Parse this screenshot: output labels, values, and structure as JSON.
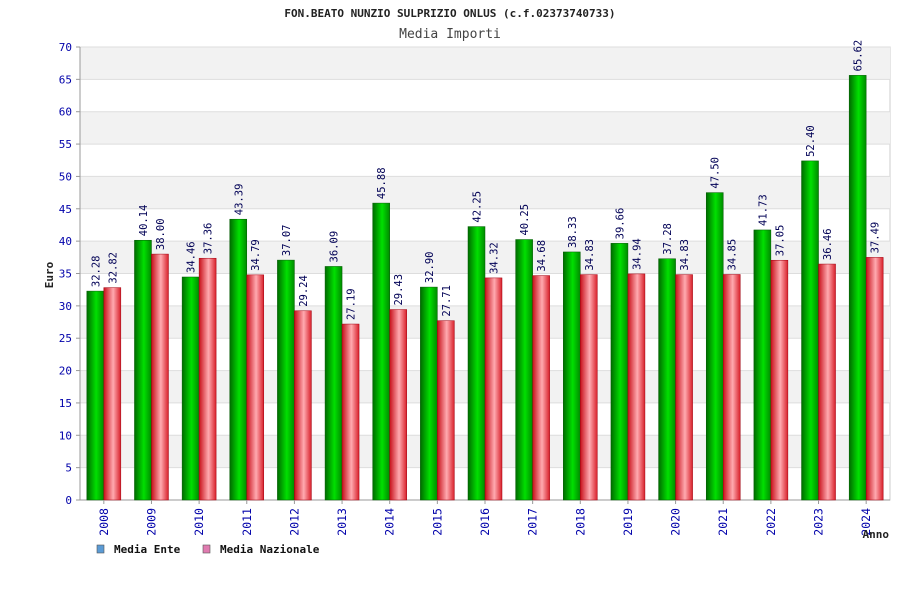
{
  "chart_data": {
    "type": "bar",
    "title": "FON.BEATO NUNZIO SULPRIZIO ONLUS (c.f.02373740733)",
    "subtitle": "Media Importi",
    "xlabel": "Anno",
    "ylabel": "Euro",
    "ylim": [
      0,
      70
    ],
    "yticks": [
      0,
      5,
      10,
      15,
      20,
      25,
      30,
      35,
      40,
      45,
      50,
      55,
      60,
      65,
      70
    ],
    "grid": true,
    "legend_position": "bottom-left",
    "categories": [
      "2008",
      "2009",
      "2010",
      "2011",
      "2012",
      "2013",
      "2014",
      "2015",
      "2016",
      "2017",
      "2018",
      "2019",
      "2020",
      "2021",
      "2022",
      "2023",
      "2024"
    ],
    "series": [
      {
        "name": "Media Ente",
        "color": "#00b400",
        "legend_color": "#5b9bd5",
        "values": [
          32.28,
          40.14,
          34.46,
          43.39,
          37.07,
          36.09,
          45.88,
          32.9,
          42.25,
          40.25,
          38.33,
          39.66,
          37.28,
          47.5,
          41.73,
          52.4,
          65.62
        ],
        "labels": [
          "32.28",
          "40.14",
          "34.46",
          "43.39",
          "37.07",
          "36.09",
          "45.88",
          "32.90",
          "42.25",
          "40.25",
          "38.33",
          "39.66",
          "37.28",
          "47.50",
          "41.73",
          "52.40",
          "65.62"
        ]
      },
      {
        "name": "Media Nazionale",
        "color": "#e8202a",
        "legend_color": "#e07bb0",
        "values": [
          32.82,
          38.0,
          37.36,
          34.79,
          29.24,
          27.19,
          29.43,
          27.71,
          34.32,
          34.68,
          34.83,
          34.94,
          34.83,
          34.85,
          37.05,
          36.46,
          37.49
        ],
        "labels": [
          "32.82",
          "38.00",
          "37.36",
          "34.79",
          "29.24",
          "27.19",
          "29.43",
          "27.71",
          "34.32",
          "34.68",
          "34.83",
          "34.94",
          "34.83",
          "34.85",
          "37.05",
          "36.46",
          "37.49"
        ]
      }
    ]
  }
}
